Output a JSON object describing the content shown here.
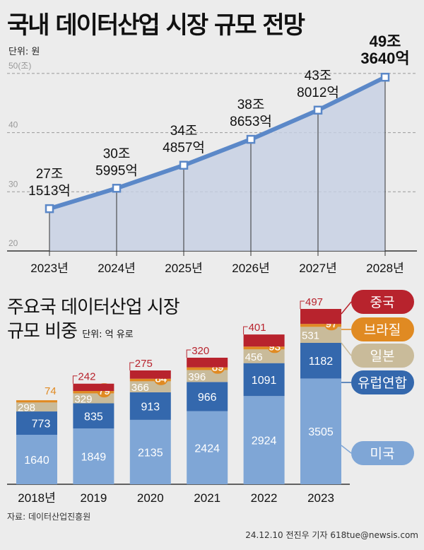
{
  "chart_data": [
    {
      "type": "line",
      "title": "국내 데이터산업 시장 규모 전망",
      "unit": "단위: 원",
      "y_axis_top_label": "50(조)",
      "categories": [
        "2023년",
        "2024년",
        "2025년",
        "2026년",
        "2027년",
        "2028년"
      ],
      "values": [
        27.1513,
        30.5995,
        34.4857,
        38.8653,
        43.8012,
        49.364
      ],
      "data_labels": [
        [
          "27조",
          "1513억"
        ],
        [
          "30조",
          "5995억"
        ],
        [
          "34조",
          "4857억"
        ],
        [
          "38조",
          "8653억"
        ],
        [
          "43조",
          "8012억"
        ],
        [
          "49조",
          "3640억"
        ]
      ],
      "yticks": [
        "20",
        "30",
        "40",
        "50(조)"
      ],
      "ylim": [
        20,
        50
      ],
      "grid": true,
      "color": "#5b88c8"
    },
    {
      "type": "bar",
      "stacked": true,
      "title_lines": [
        "주요국 데이터산업 시장",
        "규모 비중"
      ],
      "unit": "단위: 억 유로",
      "categories": [
        "2018년",
        "2019",
        "2020",
        "2021",
        "2022",
        "2023"
      ],
      "series": [
        {
          "name": "미국",
          "values": [
            1640,
            1849,
            2135,
            2424,
            2924,
            3505
          ],
          "color": "#7fa6d6"
        },
        {
          "name": "유럽연합",
          "values": [
            773,
            835,
            913,
            966,
            1091,
            1182
          ],
          "color": "#3468ad"
        },
        {
          "name": "일본",
          "values": [
            298,
            329,
            366,
            396,
            456,
            531
          ],
          "color": "#c9bb9a"
        },
        {
          "name": "브라질",
          "values": [
            74,
            79,
            84,
            89,
            93,
            97
          ],
          "color": "#e08a22"
        },
        {
          "name": "중국",
          "values": [
            null,
            242,
            275,
            320,
            401,
            497
          ],
          "color": "#b8232d"
        }
      ],
      "legend": "right"
    }
  ],
  "source": "자료: 데이터산업진흥원",
  "credit": "24.12.10 전진우 기자 618tue@newsis.com"
}
